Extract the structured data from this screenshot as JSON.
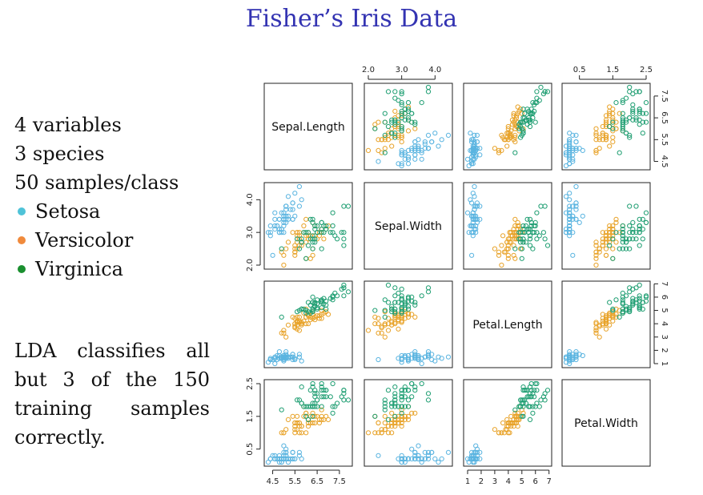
{
  "slide": {
    "title": "Fisher’s Iris Data",
    "lines": [
      "4 variables",
      "3 species",
      "50 samples/class"
    ],
    "species": [
      {
        "name": "Setosa",
        "color": "#4fc3d8"
      },
      {
        "name": "Versicolor",
        "color": "#f08a3c"
      },
      {
        "name": "Virginica",
        "color": "#1a8f2f"
      }
    ],
    "note": "LDA classifies all but 3 of the 150 training samples correctly."
  },
  "chart_data": {
    "type": "scatter",
    "subtype": "scatterplot-matrix",
    "variables": [
      "Sepal.Length",
      "Sepal.Width",
      "Petal.Length",
      "Petal.Width"
    ],
    "ranges": [
      [
        4.3,
        7.9
      ],
      [
        2.0,
        4.4
      ],
      [
        1.0,
        6.9
      ],
      [
        0.1,
        2.5
      ]
    ],
    "ticks": [
      [
        "4.5",
        "5.5",
        "6.5",
        "7.5"
      ],
      [
        "2.0",
        "3.0",
        "4.0"
      ],
      [
        "1",
        "2",
        "3",
        "4",
        "5",
        "6",
        "7"
      ],
      [
        "0.5",
        "1.5",
        "2.5"
      ]
    ],
    "series_colors": {
      "setosa": "#5ab4e0",
      "versicolor": "#e8a32a",
      "virginica": "#1f9e72"
    },
    "series": [
      {
        "name": "setosa",
        "points": [
          [
            5.1,
            3.5,
            1.4,
            0.2
          ],
          [
            4.9,
            3.0,
            1.4,
            0.2
          ],
          [
            4.7,
            3.2,
            1.3,
            0.2
          ],
          [
            4.6,
            3.1,
            1.5,
            0.2
          ],
          [
            5.0,
            3.6,
            1.4,
            0.2
          ],
          [
            5.4,
            3.9,
            1.7,
            0.4
          ],
          [
            4.6,
            3.4,
            1.4,
            0.3
          ],
          [
            5.0,
            3.4,
            1.5,
            0.2
          ],
          [
            4.4,
            2.9,
            1.4,
            0.2
          ],
          [
            4.9,
            3.1,
            1.5,
            0.1
          ],
          [
            5.4,
            3.7,
            1.5,
            0.2
          ],
          [
            4.8,
            3.4,
            1.6,
            0.2
          ],
          [
            4.8,
            3.0,
            1.4,
            0.1
          ],
          [
            4.3,
            3.0,
            1.1,
            0.1
          ],
          [
            5.8,
            4.0,
            1.2,
            0.2
          ],
          [
            5.7,
            4.4,
            1.5,
            0.4
          ],
          [
            5.4,
            3.9,
            1.3,
            0.4
          ],
          [
            5.1,
            3.5,
            1.4,
            0.3
          ],
          [
            5.7,
            3.8,
            1.7,
            0.3
          ],
          [
            5.1,
            3.8,
            1.5,
            0.3
          ],
          [
            5.4,
            3.4,
            1.7,
            0.2
          ],
          [
            5.1,
            3.7,
            1.5,
            0.4
          ],
          [
            4.6,
            3.6,
            1.0,
            0.2
          ],
          [
            5.1,
            3.3,
            1.7,
            0.5
          ],
          [
            4.8,
            3.4,
            1.9,
            0.2
          ],
          [
            5.0,
            3.0,
            1.6,
            0.2
          ],
          [
            5.0,
            3.4,
            1.6,
            0.4
          ],
          [
            5.2,
            3.5,
            1.5,
            0.2
          ],
          [
            5.2,
            3.4,
            1.4,
            0.2
          ],
          [
            4.7,
            3.2,
            1.6,
            0.2
          ],
          [
            4.8,
            3.1,
            1.6,
            0.2
          ],
          [
            5.4,
            3.4,
            1.5,
            0.4
          ],
          [
            5.2,
            4.1,
            1.5,
            0.1
          ],
          [
            5.5,
            4.2,
            1.4,
            0.2
          ],
          [
            4.9,
            3.1,
            1.5,
            0.2
          ],
          [
            5.0,
            3.2,
            1.2,
            0.2
          ],
          [
            5.5,
            3.5,
            1.3,
            0.2
          ],
          [
            4.9,
            3.6,
            1.4,
            0.1
          ],
          [
            4.4,
            3.0,
            1.3,
            0.2
          ],
          [
            5.1,
            3.4,
            1.5,
            0.2
          ],
          [
            5.0,
            3.5,
            1.3,
            0.3
          ],
          [
            4.5,
            2.3,
            1.3,
            0.3
          ],
          [
            4.4,
            3.2,
            1.3,
            0.2
          ],
          [
            5.0,
            3.5,
            1.6,
            0.6
          ],
          [
            5.1,
            3.8,
            1.9,
            0.4
          ],
          [
            4.8,
            3.0,
            1.4,
            0.3
          ],
          [
            5.1,
            3.8,
            1.6,
            0.2
          ],
          [
            4.6,
            3.2,
            1.4,
            0.2
          ],
          [
            5.3,
            3.7,
            1.5,
            0.2
          ],
          [
            5.0,
            3.3,
            1.4,
            0.2
          ]
        ]
      },
      {
        "name": "versicolor",
        "points": [
          [
            7.0,
            3.2,
            4.7,
            1.4
          ],
          [
            6.4,
            3.2,
            4.5,
            1.5
          ],
          [
            6.9,
            3.1,
            4.9,
            1.5
          ],
          [
            5.5,
            2.3,
            4.0,
            1.3
          ],
          [
            6.5,
            2.8,
            4.6,
            1.5
          ],
          [
            5.7,
            2.8,
            4.5,
            1.3
          ],
          [
            6.3,
            3.3,
            4.7,
            1.6
          ],
          [
            4.9,
            2.4,
            3.3,
            1.0
          ],
          [
            6.6,
            2.9,
            4.6,
            1.3
          ],
          [
            5.2,
            2.7,
            3.9,
            1.4
          ],
          [
            5.0,
            2.0,
            3.5,
            1.0
          ],
          [
            5.9,
            3.0,
            4.2,
            1.5
          ],
          [
            6.0,
            2.2,
            4.0,
            1.0
          ],
          [
            6.1,
            2.9,
            4.7,
            1.4
          ],
          [
            5.6,
            2.9,
            3.6,
            1.3
          ],
          [
            6.7,
            3.1,
            4.4,
            1.4
          ],
          [
            5.6,
            3.0,
            4.5,
            1.5
          ],
          [
            5.8,
            2.7,
            4.1,
            1.0
          ],
          [
            6.2,
            2.2,
            4.5,
            1.5
          ],
          [
            5.6,
            2.5,
            3.9,
            1.1
          ],
          [
            5.9,
            3.2,
            4.8,
            1.8
          ],
          [
            6.1,
            2.8,
            4.0,
            1.3
          ],
          [
            6.3,
            2.5,
            4.9,
            1.5
          ],
          [
            6.1,
            2.8,
            4.7,
            1.2
          ],
          [
            6.4,
            2.9,
            4.3,
            1.3
          ],
          [
            6.6,
            3.0,
            4.4,
            1.4
          ],
          [
            6.8,
            2.8,
            4.8,
            1.4
          ],
          [
            6.7,
            3.0,
            5.0,
            1.7
          ],
          [
            6.0,
            2.9,
            4.5,
            1.5
          ],
          [
            5.7,
            2.6,
            3.5,
            1.0
          ],
          [
            5.5,
            2.4,
            3.8,
            1.1
          ],
          [
            5.5,
            2.4,
            3.7,
            1.0
          ],
          [
            5.8,
            2.7,
            3.9,
            1.2
          ],
          [
            6.0,
            2.7,
            5.1,
            1.6
          ],
          [
            5.4,
            3.0,
            4.5,
            1.5
          ],
          [
            6.0,
            3.4,
            4.5,
            1.6
          ],
          [
            6.7,
            3.1,
            4.7,
            1.5
          ],
          [
            6.3,
            2.3,
            4.4,
            1.3
          ],
          [
            5.6,
            3.0,
            4.1,
            1.3
          ],
          [
            5.5,
            2.5,
            4.0,
            1.3
          ],
          [
            5.5,
            2.6,
            4.4,
            1.2
          ],
          [
            6.1,
            3.0,
            4.6,
            1.4
          ],
          [
            5.8,
            2.6,
            4.0,
            1.2
          ],
          [
            5.0,
            2.3,
            3.3,
            1.0
          ],
          [
            5.6,
            2.7,
            4.2,
            1.3
          ],
          [
            5.7,
            3.0,
            4.2,
            1.2
          ],
          [
            5.7,
            2.9,
            4.2,
            1.3
          ],
          [
            6.2,
            2.9,
            4.3,
            1.3
          ],
          [
            5.1,
            2.5,
            3.0,
            1.1
          ],
          [
            5.7,
            2.8,
            4.1,
            1.3
          ]
        ]
      },
      {
        "name": "virginica",
        "points": [
          [
            6.3,
            3.3,
            6.0,
            2.5
          ],
          [
            5.8,
            2.7,
            5.1,
            1.9
          ],
          [
            7.1,
            3.0,
            5.9,
            2.1
          ],
          [
            6.3,
            2.9,
            5.6,
            1.8
          ],
          [
            6.5,
            3.0,
            5.8,
            2.2
          ],
          [
            7.6,
            3.0,
            6.6,
            2.1
          ],
          [
            4.9,
            2.5,
            4.5,
            1.7
          ],
          [
            7.3,
            2.9,
            6.3,
            1.8
          ],
          [
            6.7,
            2.5,
            5.8,
            1.8
          ],
          [
            7.2,
            3.6,
            6.1,
            2.5
          ],
          [
            6.5,
            3.2,
            5.1,
            2.0
          ],
          [
            6.4,
            2.7,
            5.3,
            1.9
          ],
          [
            6.8,
            3.0,
            5.5,
            2.1
          ],
          [
            5.7,
            2.5,
            5.0,
            2.0
          ],
          [
            5.8,
            2.8,
            5.1,
            2.4
          ],
          [
            6.4,
            3.2,
            5.3,
            2.3
          ],
          [
            6.5,
            3.0,
            5.5,
            1.8
          ],
          [
            7.7,
            3.8,
            6.7,
            2.2
          ],
          [
            7.7,
            2.6,
            6.9,
            2.3
          ],
          [
            6.0,
            2.2,
            5.0,
            1.5
          ],
          [
            6.9,
            3.2,
            5.7,
            2.3
          ],
          [
            5.6,
            2.8,
            4.9,
            2.0
          ],
          [
            7.7,
            2.8,
            6.7,
            2.0
          ],
          [
            6.3,
            2.7,
            4.9,
            1.8
          ],
          [
            6.7,
            3.3,
            5.7,
            2.1
          ],
          [
            7.2,
            3.2,
            6.0,
            1.8
          ],
          [
            6.2,
            2.8,
            4.8,
            1.8
          ],
          [
            6.1,
            3.0,
            4.9,
            1.8
          ],
          [
            6.4,
            2.8,
            5.6,
            2.1
          ],
          [
            7.2,
            3.0,
            5.8,
            1.6
          ],
          [
            7.4,
            2.8,
            6.1,
            1.9
          ],
          [
            7.9,
            3.8,
            6.4,
            2.0
          ],
          [
            6.4,
            2.8,
            5.6,
            2.2
          ],
          [
            6.3,
            2.8,
            5.1,
            1.5
          ],
          [
            6.1,
            2.6,
            5.6,
            1.4
          ],
          [
            7.7,
            3.0,
            6.1,
            2.3
          ],
          [
            6.3,
            3.4,
            5.6,
            2.4
          ],
          [
            6.4,
            3.1,
            5.5,
            1.8
          ],
          [
            6.0,
            3.0,
            4.8,
            1.8
          ],
          [
            6.9,
            3.1,
            5.4,
            2.1
          ],
          [
            6.7,
            3.1,
            5.6,
            2.4
          ],
          [
            6.9,
            3.1,
            5.1,
            2.3
          ],
          [
            5.8,
            2.7,
            5.1,
            1.9
          ],
          [
            6.8,
            3.2,
            5.9,
            2.3
          ],
          [
            6.7,
            3.3,
            5.7,
            2.5
          ],
          [
            6.7,
            3.0,
            5.2,
            2.3
          ],
          [
            6.3,
            2.5,
            5.0,
            1.9
          ],
          [
            6.5,
            3.0,
            5.2,
            2.0
          ],
          [
            6.2,
            3.4,
            5.4,
            2.3
          ],
          [
            5.9,
            3.0,
            5.1,
            1.8
          ]
        ]
      }
    ]
  }
}
